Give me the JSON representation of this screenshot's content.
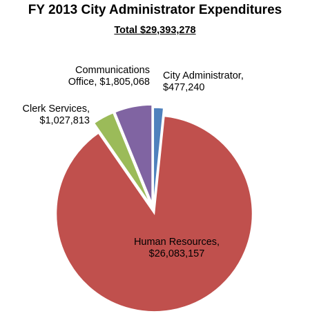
{
  "chart_data": {
    "type": "pie",
    "title": "FY 2013 City Administrator Expenditures",
    "subtitle": "Total  $29,393,278",
    "slices": [
      {
        "label": [
          "City Administrator,",
          "$477,240"
        ],
        "value": 477240,
        "color": "#4F81BD"
      },
      {
        "label": [
          "Human Resources,",
          "$26,083,157"
        ],
        "value": 26083157,
        "color": "#C0504D"
      },
      {
        "label": [
          "Clerk Services,",
          "$1,027,813"
        ],
        "value": 1027813,
        "color": "#9BBB59"
      },
      {
        "label": [
          "Communications",
          "Office, $1,805,068"
        ],
        "value": 1805068,
        "color": "#8064A2"
      }
    ]
  }
}
